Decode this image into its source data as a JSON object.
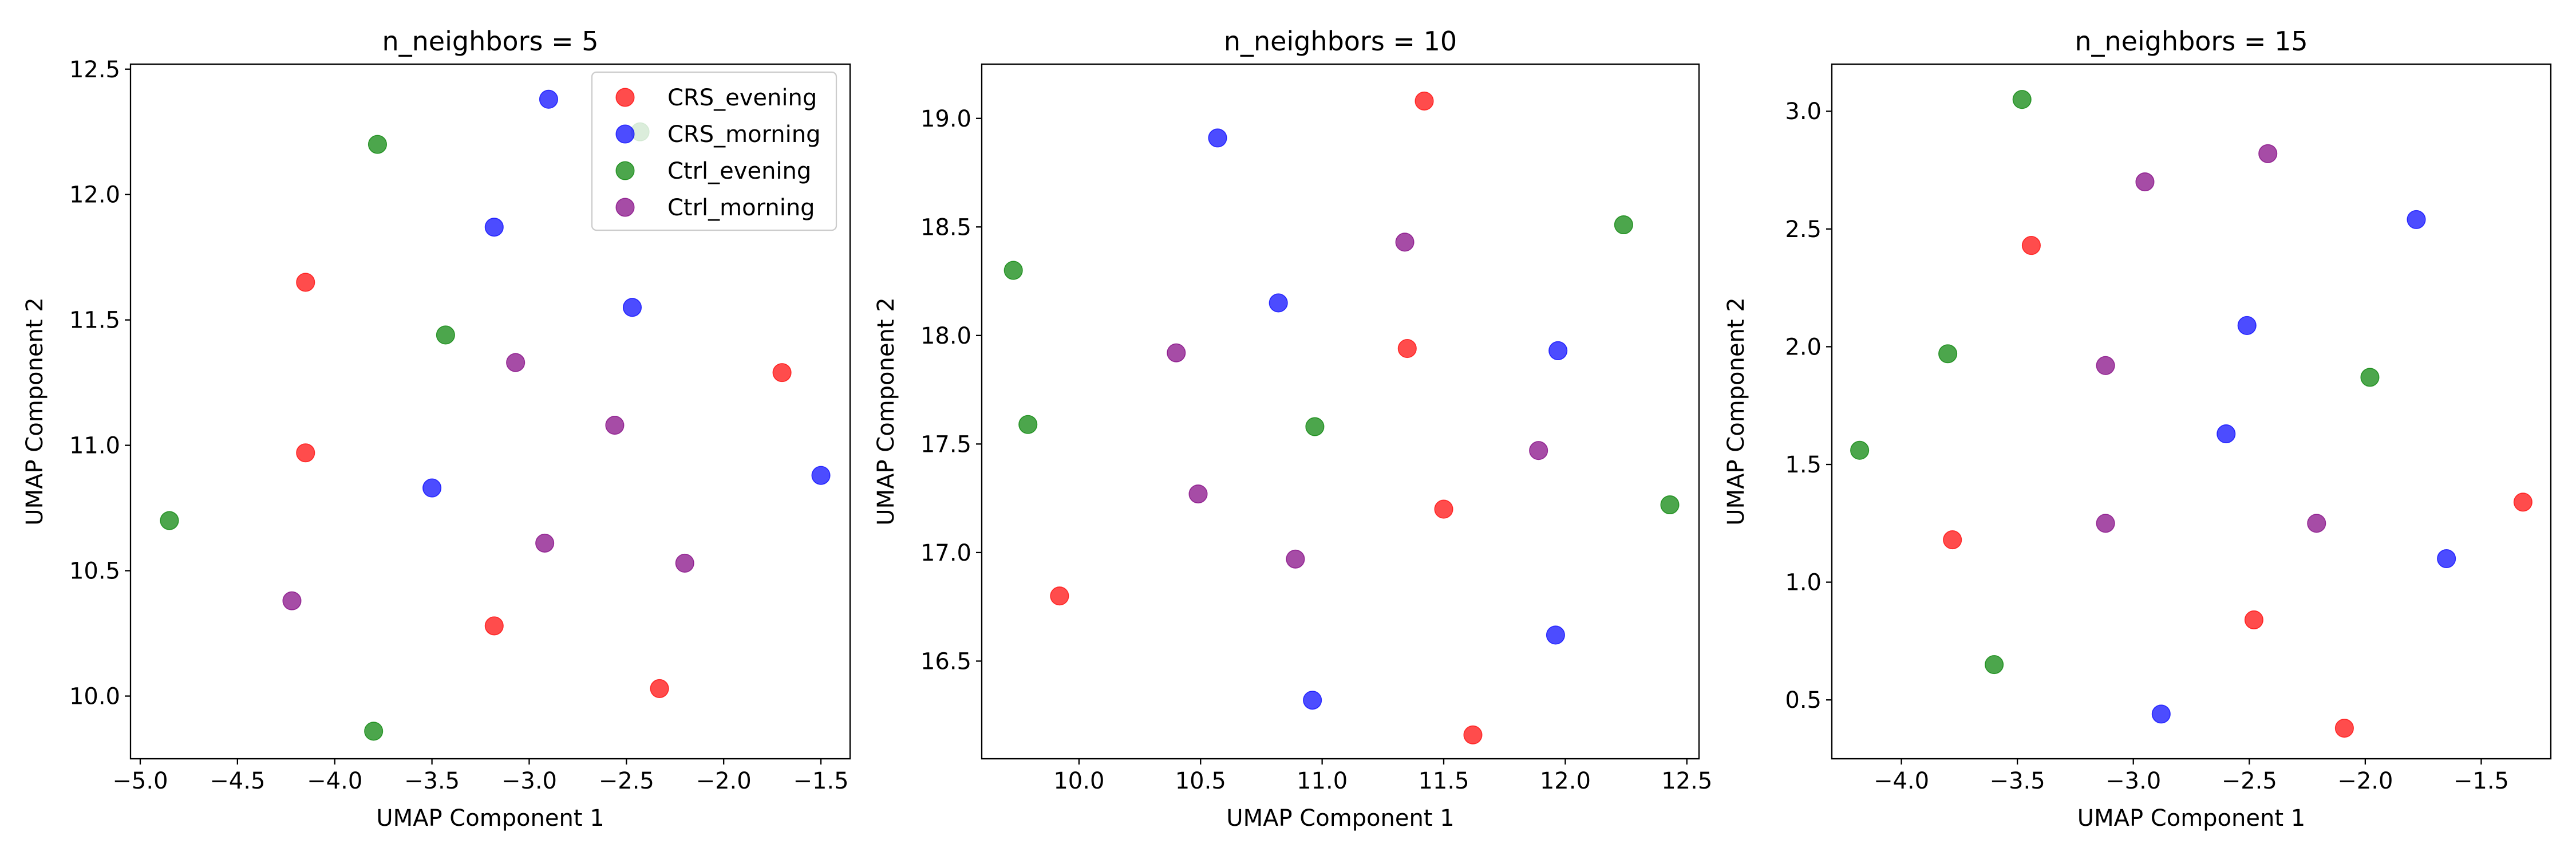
{
  "chart_data": [
    {
      "type": "scatter",
      "title": "n_neighbors = 5",
      "xlabel": "UMAP Component 1",
      "ylabel": "UMAP Component 2",
      "xlim": [
        -5.05,
        -1.35
      ],
      "ylim": [
        9.75,
        12.52
      ],
      "xticks": [
        -5.0,
        -4.5,
        -4.0,
        -3.5,
        -3.0,
        -2.5,
        -2.0,
        -1.5
      ],
      "xtick_labels": [
        "−5.0",
        "−4.5",
        "−4.0",
        "−3.5",
        "−3.0",
        "−2.5",
        "−2.0",
        "−1.5"
      ],
      "yticks": [
        10.0,
        10.5,
        11.0,
        11.5,
        12.0,
        12.5
      ],
      "ytick_labels": [
        "10.0",
        "10.5",
        "11.0",
        "11.5",
        "12.0",
        "12.5"
      ],
      "legend": {
        "placement": "upper-right"
      },
      "series": [
        {
          "name": "CRS_evening",
          "color": "#ff0000",
          "points": [
            [
              -4.15,
              11.65
            ],
            [
              -4.15,
              10.97
            ],
            [
              -3.18,
              10.28
            ],
            [
              -2.33,
              10.03
            ],
            [
              -1.7,
              11.29
            ]
          ]
        },
        {
          "name": "CRS_morning",
          "color": "#0000ff",
          "points": [
            [
              -2.9,
              12.38
            ],
            [
              -3.18,
              11.87
            ],
            [
              -2.47,
              11.55
            ],
            [
              -3.5,
              10.83
            ],
            [
              -1.5,
              10.88
            ]
          ]
        },
        {
          "name": "Ctrl_evening",
          "color": "#008000",
          "points": [
            [
              -3.78,
              12.2
            ],
            [
              -2.43,
              12.25
            ],
            [
              -3.43,
              11.44
            ],
            [
              -4.85,
              10.7
            ],
            [
              -3.8,
              9.86
            ]
          ]
        },
        {
          "name": "Ctrl_morning",
          "color": "#800080",
          "points": [
            [
              -3.07,
              11.33
            ],
            [
              -2.56,
              11.08
            ],
            [
              -2.92,
              10.61
            ],
            [
              -2.2,
              10.53
            ],
            [
              -4.22,
              10.38
            ]
          ]
        }
      ]
    },
    {
      "type": "scatter",
      "title": "n_neighbors = 10",
      "xlabel": "UMAP Component 1",
      "ylabel": "UMAP Component 2",
      "xlim": [
        9.6,
        12.55
      ],
      "ylim": [
        16.05,
        19.25
      ],
      "xticks": [
        10.0,
        10.5,
        11.0,
        11.5,
        12.0,
        12.5
      ],
      "xtick_labels": [
        "10.0",
        "10.5",
        "11.0",
        "11.5",
        "12.0",
        "12.5"
      ],
      "yticks": [
        16.5,
        17.0,
        17.5,
        18.0,
        18.5,
        19.0
      ],
      "ytick_labels": [
        "16.5",
        "17.0",
        "17.5",
        "18.0",
        "18.5",
        "19.0"
      ],
      "series": [
        {
          "name": "CRS_evening",
          "color": "#ff0000",
          "points": [
            [
              11.42,
              19.08
            ],
            [
              11.35,
              17.94
            ],
            [
              11.5,
              17.2
            ],
            [
              9.92,
              16.8
            ],
            [
              11.62,
              16.16
            ]
          ]
        },
        {
          "name": "CRS_morning",
          "color": "#0000ff",
          "points": [
            [
              10.57,
              18.91
            ],
            [
              10.82,
              18.15
            ],
            [
              11.97,
              17.93
            ],
            [
              11.96,
              16.62
            ],
            [
              10.96,
              16.32
            ]
          ]
        },
        {
          "name": "Ctrl_evening",
          "color": "#008000",
          "points": [
            [
              9.73,
              18.3
            ],
            [
              12.24,
              18.51
            ],
            [
              9.79,
              17.59
            ],
            [
              10.97,
              17.58
            ],
            [
              12.43,
              17.22
            ]
          ]
        },
        {
          "name": "Ctrl_morning",
          "color": "#800080",
          "points": [
            [
              11.34,
              18.43
            ],
            [
              10.4,
              17.92
            ],
            [
              11.89,
              17.47
            ],
            [
              10.49,
              17.27
            ],
            [
              10.89,
              16.97
            ]
          ]
        }
      ]
    },
    {
      "type": "scatter",
      "title": "n_neighbors = 15",
      "xlabel": "UMAP Component 1",
      "ylabel": "UMAP Component 2",
      "xlim": [
        -4.3,
        -1.2
      ],
      "ylim": [
        0.25,
        3.2
      ],
      "xticks": [
        -4.0,
        -3.5,
        -3.0,
        -2.5,
        -2.0,
        -1.5
      ],
      "xtick_labels": [
        "−4.0",
        "−3.5",
        "−3.0",
        "−2.5",
        "−2.0",
        "−1.5"
      ],
      "yticks": [
        0.5,
        1.0,
        1.5,
        2.0,
        2.5,
        3.0
      ],
      "ytick_labels": [
        "0.5",
        "1.0",
        "1.5",
        "2.0",
        "2.5",
        "3.0"
      ],
      "series": [
        {
          "name": "CRS_evening",
          "color": "#ff0000",
          "points": [
            [
              -3.44,
              2.43
            ],
            [
              -3.78,
              1.18
            ],
            [
              -1.32,
              1.34
            ],
            [
              -2.48,
              0.84
            ],
            [
              -2.09,
              0.38
            ]
          ]
        },
        {
          "name": "CRS_morning",
          "color": "#0000ff",
          "points": [
            [
              -1.78,
              2.54
            ],
            [
              -2.51,
              2.09
            ],
            [
              -2.6,
              1.63
            ],
            [
              -1.65,
              1.1
            ],
            [
              -2.88,
              0.44
            ]
          ]
        },
        {
          "name": "Ctrl_evening",
          "color": "#008000",
          "points": [
            [
              -3.48,
              3.05
            ],
            [
              -3.8,
              1.97
            ],
            [
              -1.98,
              1.87
            ],
            [
              -4.18,
              1.56
            ],
            [
              -3.6,
              0.65
            ]
          ]
        },
        {
          "name": "Ctrl_morning",
          "color": "#800080",
          "points": [
            [
              -2.95,
              2.7
            ],
            [
              -2.42,
              2.82
            ],
            [
              -3.12,
              1.92
            ],
            [
              -3.12,
              1.25
            ],
            [
              -2.21,
              1.25
            ]
          ]
        }
      ]
    }
  ]
}
